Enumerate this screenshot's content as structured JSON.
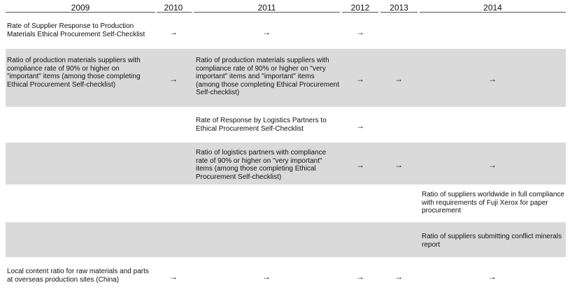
{
  "years": [
    "2009",
    "2010",
    "2011",
    "2012",
    "2013",
    "2014"
  ],
  "arrow": "→",
  "rows": [
    {
      "c2009": "Rate of Supplier Response to Production Materials Ethical Procurement Self-Checklist",
      "c2011": "",
      "c2014": ""
    },
    {
      "c2009": "Ratio of production materials suppliers with compliance rate of 90%  or higher on \"important\" items (among those completing Ethical Procurement Self-checklist)",
      "c2011": "Ratio of production materials suppliers with compliance rate of 90%  or higher on \"very important\" items and \"important\" items (among those completing Ethical Procurement Self-checklist)",
      "c2014": ""
    },
    {
      "c2009": "",
      "c2011": "Rate of Response by Logistics Partners to Ethical Procurement Self-Checklist",
      "c2014": ""
    },
    {
      "c2009": "",
      "c2011": "Ratio of logistics partners with compliance rate of 90% or higher on \"very important\" items (among those completing Ethical Procurement Self-checklist)",
      "c2014": ""
    },
    {
      "c2009": "",
      "c2011": "",
      "c2014": "Ratio of suppliers worldwide in full compliance with requirements of Fuji Xerox for paper procurement"
    },
    {
      "c2009": "",
      "c2011": "",
      "c2014": "Ratio of suppliers submitting conflict minerals report"
    },
    {
      "c2009": "Local content ratio for raw materials and parts at overseas production sites (China)",
      "c2011": "",
      "c2014": ""
    }
  ]
}
